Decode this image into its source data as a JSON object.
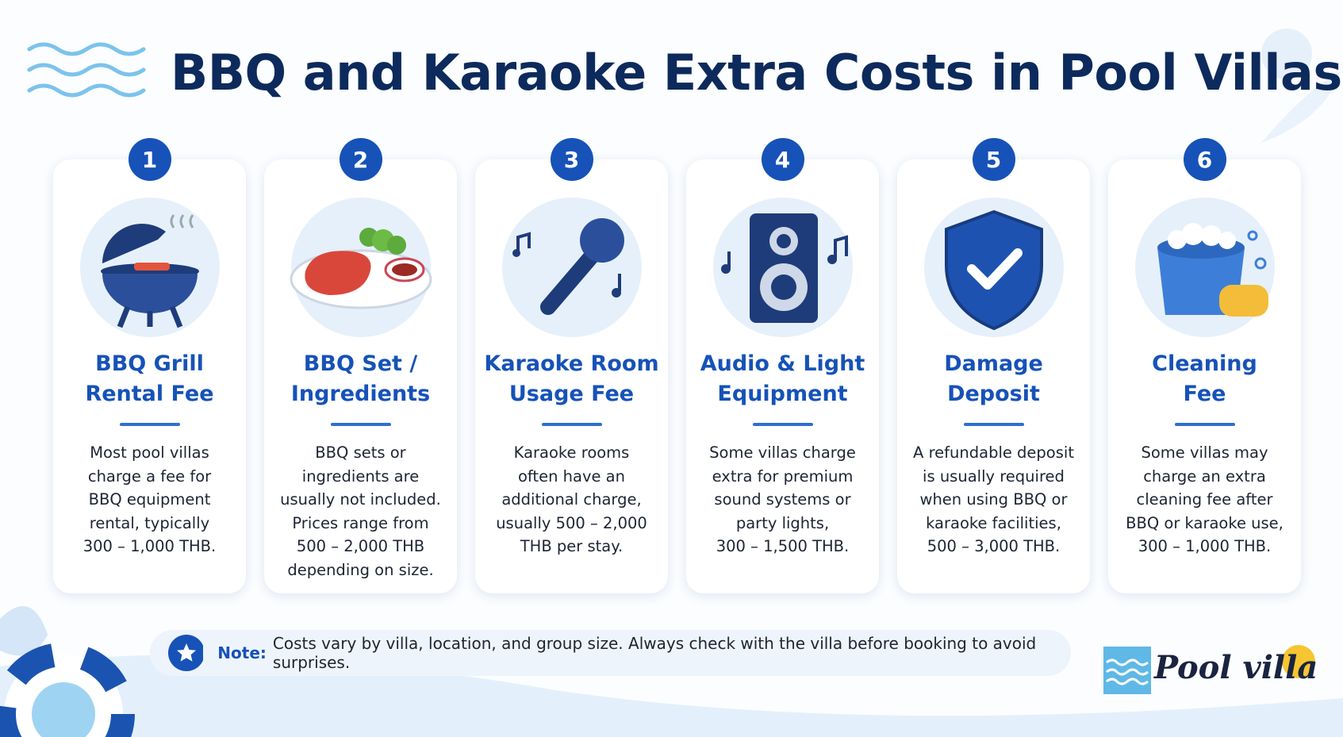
{
  "header": {
    "title": "BBQ and Karaoke Extra Costs in Pool Villas"
  },
  "cards": [
    {
      "number": "1",
      "title": [
        "BBQ Grill",
        "Rental Fee"
      ],
      "body": [
        "Most pool villas",
        "charge a fee for",
        "BBQ equipment",
        "rental, typically",
        "300 – 1,000 THB."
      ]
    },
    {
      "number": "2",
      "title": [
        "BBQ Set /",
        "Ingredients"
      ],
      "body": [
        "BBQ sets or",
        "ingredients are",
        "usually not included.",
        "Prices range from",
        "500 – 2,000 THB",
        "depending on size."
      ]
    },
    {
      "number": "3",
      "title": [
        "Karaoke Room",
        "Usage Fee"
      ],
      "body": [
        "Karaoke rooms",
        "often have an",
        "additional charge,",
        "usually 500 – 2,000",
        "THB per stay."
      ]
    },
    {
      "number": "4",
      "title": [
        "Audio & Light",
        "Equipment"
      ],
      "body": [
        "Some villas charge",
        "extra for premium",
        "sound systems or",
        "party lights,",
        "300 – 1,500 THB."
      ]
    },
    {
      "number": "5",
      "title": [
        "Damage",
        "Deposit"
      ],
      "body": [
        "A refundable deposit",
        "is usually required",
        "when using BBQ or",
        "karaoke facilities,",
        "500 – 3,000 THB."
      ]
    },
    {
      "number": "6",
      "title": [
        "Cleaning",
        "Fee"
      ],
      "body": [
        "Some villas may",
        "charge an extra",
        "cleaning fee after",
        "BBQ or karaoke use,",
        "300 – 1,000 THB."
      ]
    }
  ],
  "note": {
    "label": "Note:",
    "text": "Costs vary by villa, location, and group size. Always check with the villa before booking to avoid surprises."
  },
  "logo": {
    "text": "Pool villa"
  }
}
